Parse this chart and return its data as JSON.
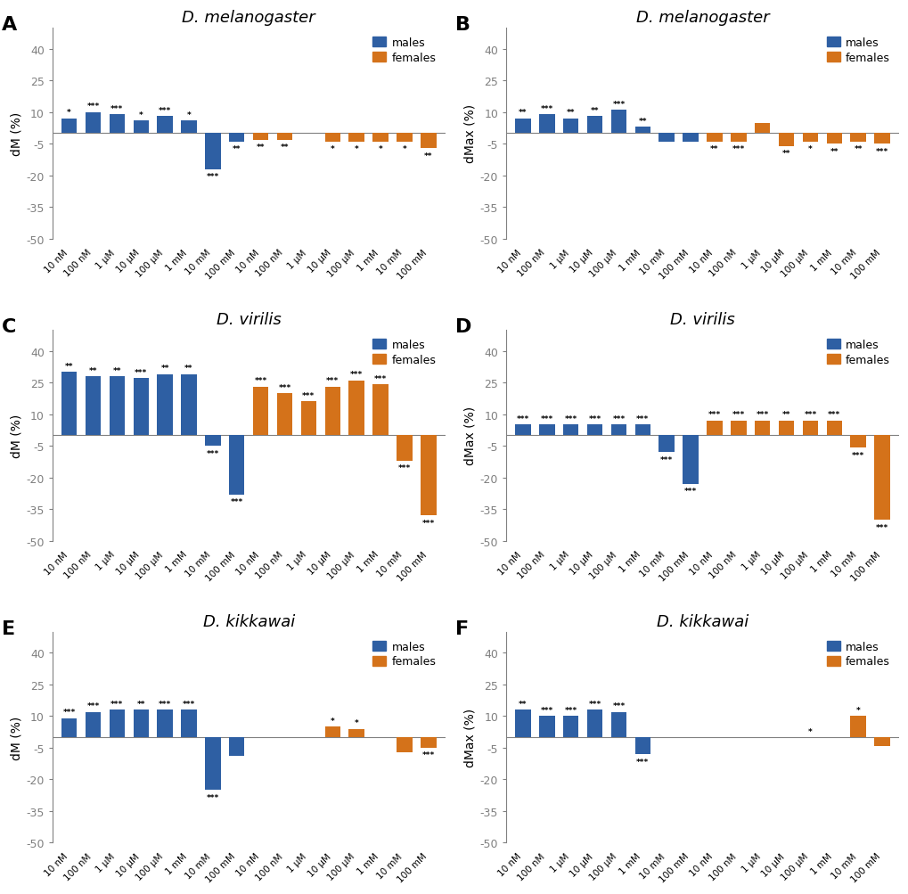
{
  "panels": [
    {
      "label": "A",
      "title": "D. melanogaster",
      "ylabel": "dM (%)",
      "ylim": [
        -50,
        50
      ],
      "yticks": [
        -50,
        -35,
        -20,
        -5,
        10,
        25,
        40
      ],
      "males": [
        7,
        10,
        9,
        6,
        8,
        6,
        -17,
        -4,
        0,
        0,
        0,
        0,
        0,
        0,
        0,
        0
      ],
      "females": [
        0,
        0,
        0,
        0,
        0,
        0,
        0,
        0,
        -3,
        -3,
        0,
        -4,
        -4,
        -4,
        -4,
        -7
      ],
      "male_stars": [
        "*",
        "***",
        "***",
        "*",
        "***",
        "*",
        "***",
        "**",
        "",
        "",
        "",
        "",
        "",
        "",
        "",
        ""
      ],
      "female_stars": [
        "",
        "",
        "",
        "",
        "",
        "",
        "",
        "",
        "**",
        "**",
        "",
        "*",
        "*",
        "*",
        "*",
        "**"
      ],
      "male_star_lines": [
        1,
        3,
        3,
        1,
        3,
        1,
        3,
        2,
        0,
        0,
        0,
        0,
        0,
        0,
        0,
        0
      ],
      "female_star_lines": [
        0,
        0,
        0,
        0,
        0,
        0,
        0,
        0,
        2,
        2,
        0,
        3,
        2,
        2,
        2,
        3
      ]
    },
    {
      "label": "B",
      "title": "D. melanogaster",
      "ylabel": "dMax (%)",
      "ylim": [
        -50,
        50
      ],
      "yticks": [
        -50,
        -35,
        -20,
        -5,
        10,
        25,
        40
      ],
      "males": [
        7,
        9,
        7,
        8,
        11,
        3,
        -4,
        -4,
        0,
        0,
        0,
        0,
        0,
        0,
        0,
        0
      ],
      "females": [
        0,
        0,
        0,
        0,
        0,
        0,
        0,
        0,
        -4,
        -4,
        5,
        -6,
        -4,
        -5,
        -4,
        -5
      ],
      "male_stars": [
        "**",
        "***",
        "**",
        "**",
        "***",
        "**",
        "",
        "",
        "",
        "",
        "",
        "",
        "",
        "",
        "",
        ""
      ],
      "female_stars": [
        "",
        "",
        "",
        "",
        "",
        "",
        "",
        "",
        "**",
        "***",
        "",
        "**",
        "*",
        "**",
        "**",
        "***"
      ],
      "male_star_lines": [
        2,
        3,
        2,
        2,
        3,
        2,
        0,
        0,
        0,
        0,
        0,
        0,
        0,
        0,
        0,
        0
      ],
      "female_star_lines": [
        0,
        0,
        0,
        0,
        0,
        0,
        0,
        0,
        2,
        3,
        0,
        3,
        1,
        2,
        2,
        3
      ]
    },
    {
      "label": "C",
      "title": "D. virilis",
      "ylabel": "dM (%)",
      "ylim": [
        -50,
        50
      ],
      "yticks": [
        -50,
        -35,
        -20,
        -5,
        10,
        25,
        40
      ],
      "males": [
        30,
        28,
        28,
        27,
        29,
        29,
        -5,
        -28,
        0,
        0,
        0,
        0,
        0,
        0,
        0,
        0
      ],
      "females": [
        0,
        0,
        0,
        0,
        0,
        0,
        0,
        0,
        23,
        20,
        16,
        23,
        26,
        24,
        -12,
        -38
      ],
      "male_stars": [
        "**",
        "**",
        "**",
        "***",
        "**",
        "**",
        "***",
        "***",
        "",
        "",
        "",
        "",
        "",
        "",
        "",
        ""
      ],
      "female_stars": [
        "",
        "",
        "",
        "",
        "",
        "",
        "",
        "",
        "***",
        "***",
        "***",
        "***",
        "***",
        "***",
        "***",
        "***"
      ],
      "male_star_lines": [
        3,
        3,
        3,
        3,
        3,
        3,
        3,
        4,
        0,
        0,
        0,
        0,
        0,
        0,
        0,
        0
      ],
      "female_star_lines": [
        0,
        0,
        0,
        0,
        0,
        0,
        0,
        0,
        3,
        3,
        3,
        3,
        4,
        3,
        3,
        4
      ]
    },
    {
      "label": "D",
      "title": "D. virilis",
      "ylabel": "dMax (%)",
      "ylim": [
        -50,
        50
      ],
      "yticks": [
        -50,
        -35,
        -20,
        -5,
        10,
        25,
        40
      ],
      "males": [
        5,
        5,
        5,
        5,
        5,
        5,
        -8,
        -23,
        0,
        0,
        0,
        0,
        0,
        0,
        0,
        0
      ],
      "females": [
        0,
        0,
        0,
        0,
        0,
        0,
        0,
        0,
        7,
        7,
        7,
        7,
        7,
        7,
        -6,
        -40
      ],
      "male_stars": [
        "***",
        "***",
        "***",
        "***",
        "***",
        "***",
        "***",
        "***",
        "",
        "",
        "",
        "",
        "",
        "",
        "",
        ""
      ],
      "female_stars": [
        "",
        "",
        "",
        "",
        "",
        "",
        "",
        "",
        "***",
        "***",
        "***",
        "**",
        "***",
        "***",
        "***",
        "***"
      ],
      "male_star_lines": [
        3,
        3,
        3,
        3,
        3,
        3,
        3,
        3,
        0,
        0,
        0,
        0,
        0,
        0,
        0,
        0
      ],
      "female_star_lines": [
        0,
        0,
        0,
        0,
        0,
        0,
        0,
        0,
        3,
        3,
        3,
        2,
        3,
        3,
        3,
        4
      ]
    },
    {
      "label": "E",
      "title": "D. kikkawai",
      "ylabel": "dM (%)",
      "ylim": [
        -50,
        50
      ],
      "yticks": [
        -50,
        -35,
        -20,
        -5,
        10,
        25,
        40
      ],
      "males": [
        9,
        12,
        13,
        13,
        13,
        13,
        -25,
        -9,
        0,
        0,
        0,
        0,
        0,
        0,
        0,
        0
      ],
      "females": [
        0,
        0,
        0,
        0,
        0,
        0,
        0,
        0,
        0,
        0,
        0,
        5,
        4,
        0,
        -7,
        -5
      ],
      "male_stars": [
        "***",
        "***",
        "***",
        "**",
        "***",
        "***",
        "***",
        "",
        "",
        "",
        "",
        "",
        "",
        "",
        "",
        ""
      ],
      "female_stars": [
        "",
        "",
        "",
        "",
        "",
        "",
        "",
        "",
        "",
        "",
        "",
        "*",
        "*",
        "",
        "",
        "***"
      ],
      "male_star_lines": [
        3,
        3,
        3,
        2,
        3,
        3,
        3,
        0,
        0,
        0,
        0,
        0,
        0,
        0,
        0,
        0
      ],
      "female_star_lines": [
        0,
        0,
        0,
        0,
        0,
        0,
        0,
        0,
        0,
        0,
        0,
        1,
        1,
        0,
        0,
        3
      ]
    },
    {
      "label": "F",
      "title": "D. kikkawai",
      "ylabel": "dMax (%)",
      "ylim": [
        -50,
        50
      ],
      "yticks": [
        -50,
        -35,
        -20,
        -5,
        10,
        25,
        40
      ],
      "males": [
        13,
        10,
        10,
        13,
        12,
        -8,
        0,
        0,
        0,
        0,
        0,
        0,
        0,
        0,
        0,
        0
      ],
      "females": [
        0,
        0,
        0,
        0,
        0,
        0,
        0,
        0,
        0,
        0,
        0,
        0,
        0,
        0,
        10,
        -4
      ],
      "male_stars": [
        "**",
        "***",
        "***",
        "***",
        "***",
        "***",
        "",
        "",
        "",
        "",
        "",
        "",
        "",
        "",
        "",
        ""
      ],
      "female_stars": [
        "",
        "",
        "",
        "",
        "",
        "",
        "",
        "",
        "",
        "",
        "",
        "",
        "*",
        "",
        "*",
        ""
      ],
      "male_star_lines": [
        2,
        3,
        3,
        3,
        3,
        3,
        0,
        0,
        0,
        0,
        0,
        0,
        0,
        0,
        0,
        0
      ],
      "female_star_lines": [
        0,
        0,
        0,
        0,
        0,
        0,
        0,
        0,
        0,
        0,
        0,
        0,
        1,
        0,
        1,
        0
      ]
    }
  ],
  "concentrations": [
    "10 nM",
    "100 nM",
    "1 μM",
    "10 μM",
    "100 μM",
    "1 mM",
    "10 mM",
    "100 mM",
    "10 nM",
    "100 nM",
    "1 μM",
    "10 μM",
    "100 μM",
    "1 mM",
    "10 mM",
    "100 mM"
  ],
  "male_color": "#2E5FA3",
  "female_color": "#D4721A",
  "background_color": "#FFFFFF"
}
